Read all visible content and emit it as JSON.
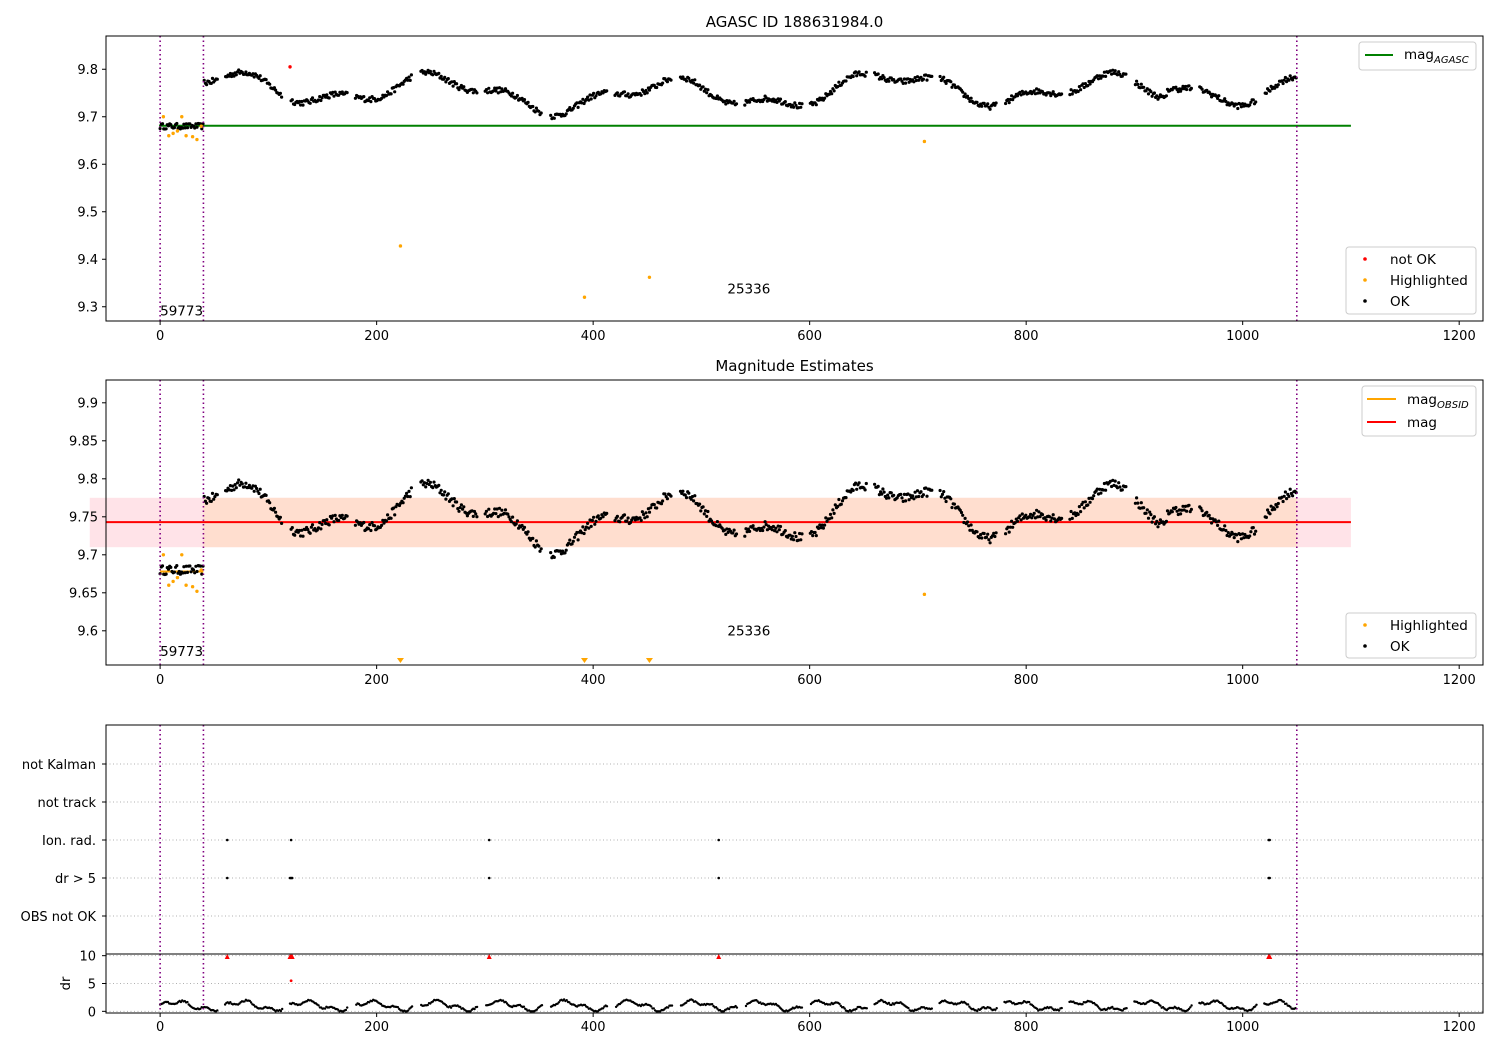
{
  "chart_data": [
    {
      "type": "scatter",
      "title": "AGASC ID 188631984.0",
      "xlabel": "",
      "ylabel": "",
      "xlim": [
        -50,
        1222
      ],
      "ylim": [
        9.27,
        9.87
      ],
      "xticks": [
        0,
        200,
        400,
        600,
        800,
        1000,
        1200
      ],
      "yticks": [
        9.3,
        9.4,
        9.5,
        9.6,
        9.7,
        9.8
      ],
      "grid": false,
      "series": [
        {
          "name": "not OK",
          "color": "#ff0000",
          "points": [
            [
              120,
              9.805
            ]
          ]
        },
        {
          "name": "Highlighted",
          "color": "#ffa500",
          "points": [
            [
              3,
              9.7
            ],
            [
              8,
              9.66
            ],
            [
              12,
              9.665
            ],
            [
              16,
              9.67
            ],
            [
              20,
              9.7
            ],
            [
              24,
              9.66
            ],
            [
              30,
              9.658
            ],
            [
              34,
              9.652
            ],
            [
              38,
              9.68
            ],
            [
              222,
              9.428
            ],
            [
              392,
              9.32
            ],
            [
              452,
              9.362
            ],
            [
              706,
              9.648
            ]
          ]
        },
        {
          "name": "OK",
          "color": "#000000",
          "points": "dense series of ~900 points spanning x = 0 to 1050; magnitude varies between about 9.68 and 9.82 (about 9.68 for x < 40)"
        }
      ],
      "lines": [
        {
          "name": "mag_AGASC",
          "legend_main": "mag",
          "legend_sub": "AGASC",
          "color": "#008000",
          "y": 9.681,
          "x": [
            -1,
            1100
          ]
        }
      ],
      "vlines": [
        0,
        40,
        1050
      ],
      "annotations": [
        {
          "text": "59773",
          "x": 0,
          "y": 9.282
        },
        {
          "text": "25336",
          "x": 524,
          "y": 9.328
        }
      ],
      "legend_upper": "top-right",
      "legend_lower": "bottom-right"
    },
    {
      "type": "scatter",
      "title": "Magnitude Estimates",
      "xlabel": "",
      "ylabel": "",
      "xlim": [
        -50,
        1222
      ],
      "ylim": [
        9.555,
        9.93
      ],
      "xticks": [
        0,
        200,
        400,
        600,
        800,
        1000,
        1200
      ],
      "yticks": [
        9.6,
        9.65,
        9.7,
        9.75,
        9.8,
        9.85,
        9.9
      ],
      "grid": false,
      "series": [
        {
          "name": "Highlighted",
          "color": "#ffa500",
          "points": [
            [
              3,
              9.7
            ],
            [
              8,
              9.66
            ],
            [
              12,
              9.665
            ],
            [
              16,
              9.67
            ],
            [
              20,
              9.7
            ],
            [
              24,
              9.66
            ],
            [
              30,
              9.658
            ],
            [
              34,
              9.652
            ],
            [
              38,
              9.68
            ],
            [
              706,
              9.648
            ]
          ],
          "off_axis_markers": [
            222,
            392,
            452
          ]
        },
        {
          "name": "OK",
          "color": "#000000",
          "points": "dense series of ~900 points spanning x = 0 to 1050; magnitude varies between about 9.68 and 9.82"
        }
      ],
      "lines": [
        {
          "name": "mag_OBSID",
          "legend_main": "mag",
          "legend_sub": "OBSID",
          "color": "#ffa500",
          "segment": {
            "x": [
              0,
              40
            ],
            "y": 9.678
          }
        },
        {
          "name": "mag",
          "legend_main": "mag",
          "color": "#ff0000",
          "y": 9.743,
          "x": [
            -65,
            1100
          ]
        }
      ],
      "bands": [
        {
          "color": "#ffc0cb",
          "y": [
            9.71,
            9.775
          ],
          "x": [
            -65,
            1100
          ]
        },
        {
          "color": "#ffdab9",
          "y": [
            9.71,
            9.775
          ],
          "x": [
            40,
            1050
          ]
        }
      ],
      "vlines": [
        0,
        40,
        1050
      ],
      "annotations": [
        {
          "text": "59773",
          "x": 0,
          "y": 9.567
        },
        {
          "text": "25336",
          "x": 524,
          "y": 9.594
        }
      ],
      "legend_upper": "top-right",
      "legend_lower": "bottom-right"
    },
    {
      "type": "scatter",
      "title": "",
      "xlim": [
        -50,
        1222
      ],
      "categories": [
        "OBS not OK",
        "dr > 5",
        "Ion. rad.",
        "not track",
        "not Kalman"
      ],
      "flag_x": {
        "dr > 5": [
          62,
          120,
          121,
          122,
          304,
          516,
          1024,
          1025
        ],
        "Ion. rad.": [
          62,
          121,
          304,
          516,
          1024,
          1025
        ]
      },
      "grid": "horizontal dotted",
      "vlines": [
        0,
        40,
        1050
      ]
    },
    {
      "type": "scatter",
      "title": "",
      "xlabel": "",
      "ylabel": "dr",
      "xlim": [
        -50,
        1222
      ],
      "ylim": [
        -0.3,
        10.3
      ],
      "xticks": [
        0,
        200,
        400,
        600,
        800,
        1000,
        1200
      ],
      "yticks": [
        0,
        5,
        10
      ],
      "grid": "horizontal dotted",
      "series": [
        {
          "name": "dr",
          "color": "#000000",
          "points": "dense series spanning x = 0 to 1050; dr between about 0 and 2.8"
        },
        {
          "name": "clipped",
          "color": "#ff0000",
          "marker": "triangle",
          "x": [
            62,
            120,
            121,
            122,
            304,
            516,
            1024,
            1025
          ],
          "y": 9.85
        },
        {
          "name": "outlier",
          "color": "#ff0000",
          "points": [
            [
              121,
              5.5
            ]
          ]
        }
      ],
      "vlines": [
        0,
        40,
        1050
      ]
    }
  ]
}
